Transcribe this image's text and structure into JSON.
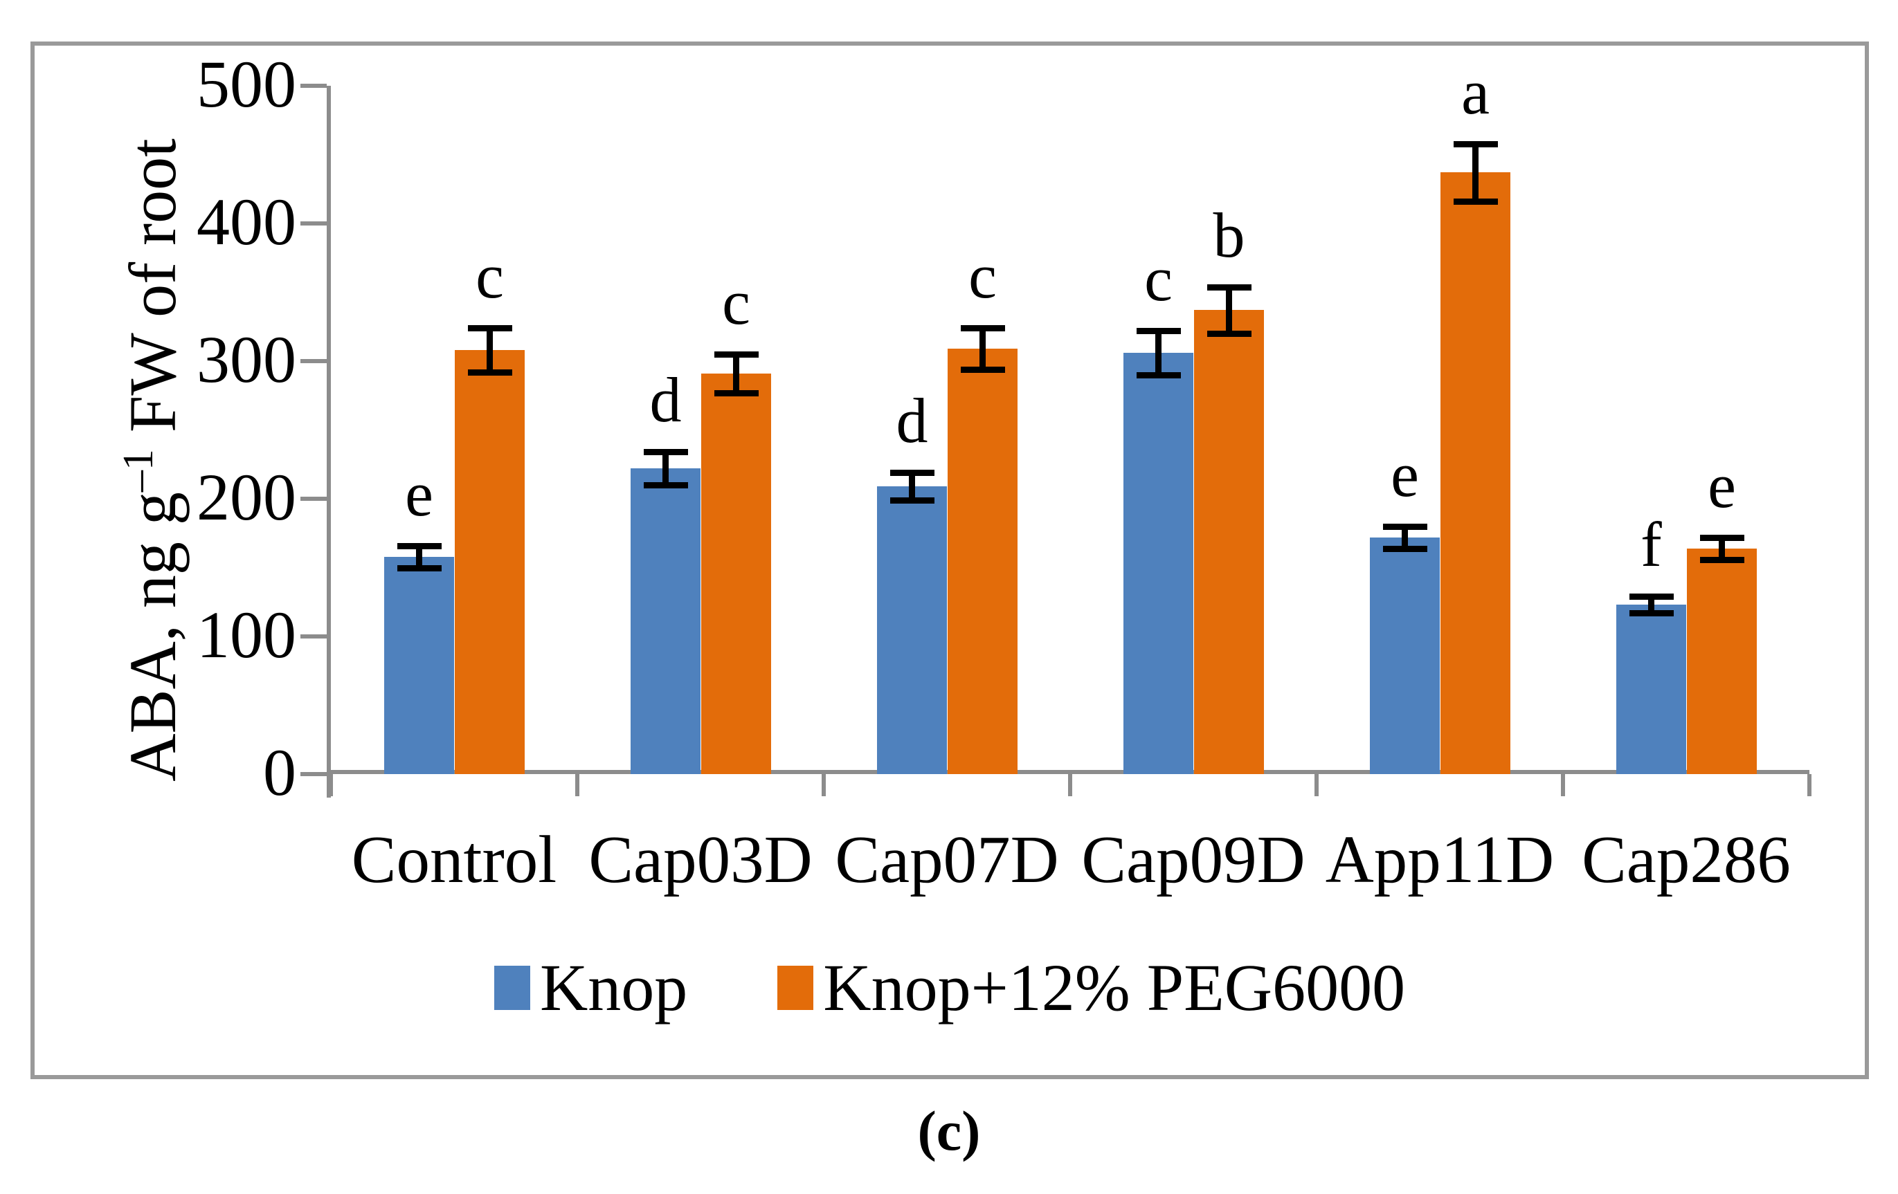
{
  "chart_data": {
    "type": "bar",
    "caption": "(c)",
    "ylabel_prefix": "ABA, ng g",
    "ylabel_sup": "–1",
    "ylabel_suffix": " FW of root",
    "ylim": [
      0,
      500
    ],
    "ytick_step": 100,
    "ytick_labels": [
      "0",
      "100",
      "200",
      "300",
      "400",
      "500"
    ],
    "grid": false,
    "legend_position": "bottom",
    "axis_color": "#8c8c8c",
    "error_bar_color": "#000000",
    "categories": [
      "Control",
      "Cap03D",
      "Cap07D",
      "Cap09D",
      "App11D",
      "Cap286"
    ],
    "series": [
      {
        "name": "Knop",
        "color": "#4F81BD",
        "values": [
          158,
          222,
          209,
          306,
          172,
          123
        ],
        "errors": [
          8,
          12,
          10,
          16,
          8,
          6
        ],
        "letters": [
          "e",
          "d",
          "d",
          "c",
          "e",
          "f"
        ]
      },
      {
        "name": "Knop+12% PEG6000",
        "color": "#E36C0A",
        "values": [
          308,
          291,
          309,
          337,
          437,
          164
        ],
        "errors": [
          16,
          14,
          15,
          17,
          21,
          8
        ],
        "letters": [
          "c",
          "c",
          "c",
          "b",
          "a",
          "e"
        ]
      }
    ]
  }
}
